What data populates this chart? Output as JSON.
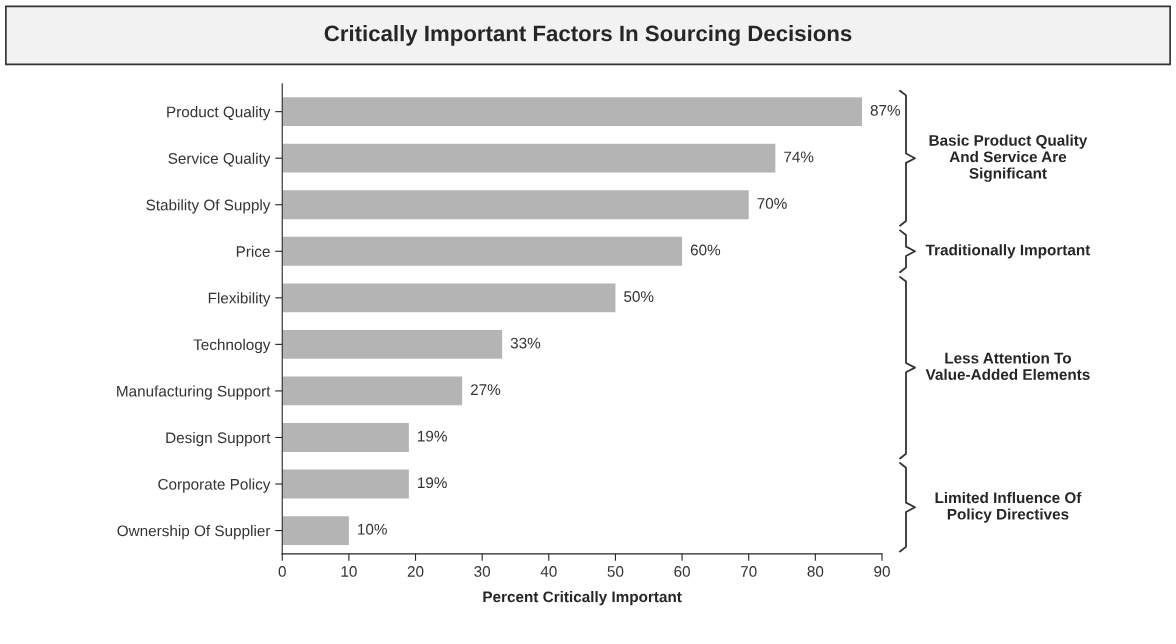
{
  "chart_data": {
    "type": "bar",
    "orientation": "horizontal",
    "title": "Critically Important Factors In Sourcing Decisions",
    "xlabel": "Percent Critically Important",
    "categories": [
      "Product Quality",
      "Service Quality",
      "Stability Of Supply",
      "Price",
      "Flexibility",
      "Technology",
      "Manufacturing Support",
      "Design Support",
      "Corporate Policy",
      "Ownership Of Supplier"
    ],
    "values": [
      87,
      74,
      70,
      60,
      50,
      33,
      27,
      19,
      19,
      10
    ],
    "value_labels": [
      "87%",
      "74%",
      "70%",
      "60%",
      "50%",
      "33%",
      "27%",
      "19%",
      "19%",
      "10%"
    ],
    "color": "#b4b4b4",
    "xlim": [
      0,
      90
    ],
    "xticks": [
      0,
      10,
      20,
      30,
      40,
      50,
      60,
      70,
      80,
      90
    ],
    "grid": false,
    "legend": false,
    "annotations": [
      "Basic Product Quality And Service Are Significant",
      "Traditionally Important",
      "Less Attention To Value-Added Elements",
      "Limited Influence Of Policy Directives"
    ]
  }
}
